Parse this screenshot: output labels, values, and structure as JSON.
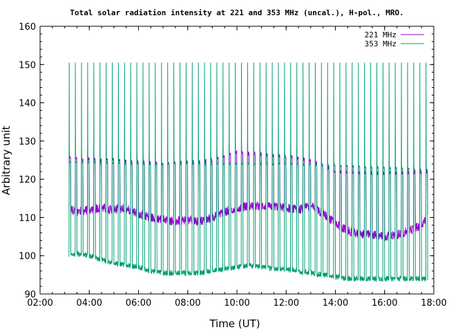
{
  "chart_data": {
    "type": "line",
    "title": "Total solar radiation intensity at 221 and 353 MHz (uncal.), H-pol., MRO.",
    "xlabel": "Time (UT)",
    "ylabel": "Arbitrary unit",
    "xlim": [
      "02:00",
      "18:00"
    ],
    "ylim": [
      90,
      160
    ],
    "x_ticks": [
      "02:00",
      "04:00",
      "06:00",
      "08:00",
      "10:00",
      "12:00",
      "14:00",
      "16:00",
      "18:00"
    ],
    "y_ticks": [
      "90",
      "100",
      "110",
      "120",
      "130",
      "140",
      "150",
      "160"
    ],
    "grid": false,
    "legend_position": "top-right",
    "calibration_spike_interval_minutes": 15,
    "series": [
      {
        "name": "221 MHz",
        "color": "#9400d3",
        "baseline": [
          [
            "03:10",
            112.5
          ],
          [
            "03:30",
            111.5
          ],
          [
            "04:00",
            112.0
          ],
          [
            "04:30",
            112.5
          ],
          [
            "05:00",
            112.0
          ],
          [
            "05:30",
            112.5
          ],
          [
            "06:00",
            111.0
          ],
          [
            "06:30",
            110.0
          ],
          [
            "07:00",
            109.5
          ],
          [
            "07:30",
            109.0
          ],
          [
            "08:00",
            109.5
          ],
          [
            "08:30",
            109.0
          ],
          [
            "09:00",
            110.0
          ],
          [
            "09:30",
            111.5
          ],
          [
            "10:00",
            112.5
          ],
          [
            "10:30",
            113.0
          ],
          [
            "11:00",
            113.0
          ],
          [
            "11:30",
            113.0
          ],
          [
            "12:00",
            112.5
          ],
          [
            "12:30",
            112.0
          ],
          [
            "13:00",
            113.0
          ],
          [
            "13:30",
            111.0
          ],
          [
            "14:00",
            108.5
          ],
          [
            "14:30",
            106.5
          ],
          [
            "15:00",
            105.5
          ],
          [
            "15:30",
            105.5
          ],
          [
            "16:00",
            105.0
          ],
          [
            "16:30",
            105.5
          ],
          [
            "17:00",
            106.5
          ],
          [
            "17:30",
            108.0
          ],
          [
            "17:45",
            110.5
          ]
        ],
        "spike_level": [
          [
            "03:20",
            128.0
          ],
          [
            "05:00",
            127.5
          ],
          [
            "07:00",
            126.5
          ],
          [
            "09:00",
            127.5
          ],
          [
            "10:00",
            129.5
          ],
          [
            "12:00",
            128.5
          ],
          [
            "13:00",
            127.5
          ],
          [
            "14:00",
            124.5
          ],
          [
            "16:00",
            124.0
          ],
          [
            "17:45",
            124.5
          ]
        ]
      },
      {
        "name": "353 MHz",
        "color": "#009e73",
        "baseline": [
          [
            "03:10",
            100.0
          ],
          [
            "03:30",
            100.5
          ],
          [
            "04:00",
            100.0
          ],
          [
            "04:30",
            99.0
          ],
          [
            "05:00",
            98.0
          ],
          [
            "05:30",
            97.5
          ],
          [
            "06:00",
            97.0
          ],
          [
            "06:30",
            96.0
          ],
          [
            "07:00",
            95.5
          ],
          [
            "07:30",
            95.5
          ],
          [
            "08:00",
            95.5
          ],
          [
            "08:30",
            95.5
          ],
          [
            "09:00",
            96.0
          ],
          [
            "09:30",
            96.5
          ],
          [
            "10:00",
            97.0
          ],
          [
            "10:30",
            97.5
          ],
          [
            "11:00",
            97.0
          ],
          [
            "11:30",
            96.5
          ],
          [
            "12:00",
            96.5
          ],
          [
            "12:30",
            96.0
          ],
          [
            "13:00",
            95.5
          ],
          [
            "13:30",
            95.0
          ],
          [
            "14:00",
            94.5
          ],
          [
            "14:30",
            94.0
          ],
          [
            "15:00",
            94.0
          ],
          [
            "15:30",
            94.0
          ],
          [
            "16:00",
            94.0
          ],
          [
            "16:30",
            94.0
          ],
          [
            "17:00",
            94.0
          ],
          [
            "17:45",
            94.0
          ]
        ],
        "plateau_level": [
          [
            "03:20",
            124.5
          ],
          [
            "06:00",
            124.0
          ],
          [
            "09:00",
            124.0
          ],
          [
            "12:00",
            124.0
          ],
          [
            "14:00",
            123.5
          ],
          [
            "16:00",
            123.0
          ],
          [
            "17:45",
            122.5
          ]
        ],
        "spike_peak": 150.5
      }
    ]
  }
}
